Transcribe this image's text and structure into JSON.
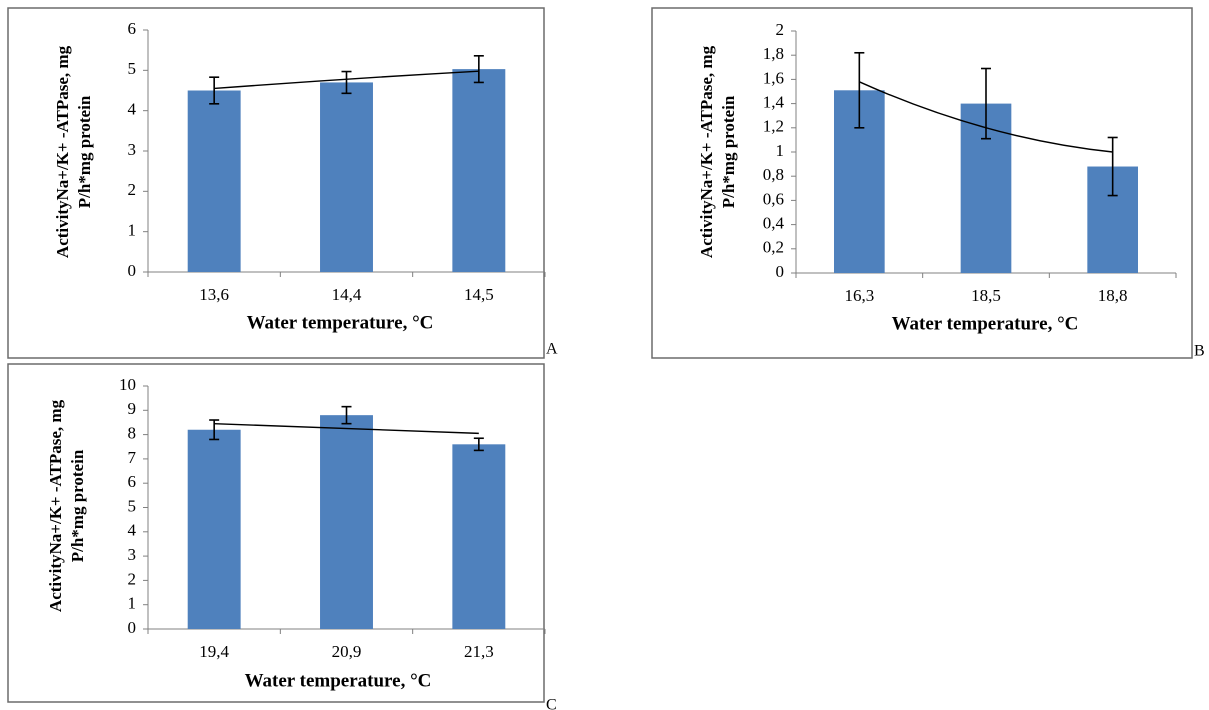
{
  "chart_data": [
    {
      "panel": "A",
      "type": "bar",
      "categories": [
        "13,6",
        "14,4",
        "14,5"
      ],
      "values": [
        4.5,
        4.7,
        5.03
      ],
      "errors": [
        0.33,
        0.27,
        0.33
      ],
      "trend": [
        4.55,
        4.78,
        4.98
      ],
      "xlabel": "Water temperature, °C",
      "ylabel": [
        "ActivityNa+/K+ -ATPase, mg",
        "P/h*mg protein"
      ],
      "ylim": [
        0,
        6
      ],
      "ytick_step": 1,
      "decimal_separator": ",",
      "grid": false,
      "colors": {
        "bar": "#4f81bd",
        "trend": "#000000"
      }
    },
    {
      "panel": "B",
      "type": "bar",
      "categories": [
        "16,3",
        "18,5",
        "18,8"
      ],
      "values": [
        1.51,
        1.4,
        0.88
      ],
      "errors": [
        0.31,
        0.29,
        0.24
      ],
      "trend": [
        1.58,
        1.2,
        1.0
      ],
      "xlabel": "Water temperature, °C",
      "ylabel": [
        "ActivityNa+/K+ -ATPase, mg",
        "P/h*mg protein"
      ],
      "ylim": [
        0,
        2
      ],
      "ytick_step": 0.2,
      "decimal_separator": ",",
      "grid": false,
      "colors": {
        "bar": "#4f81bd",
        "trend": "#000000"
      }
    },
    {
      "panel": "C",
      "type": "bar",
      "categories": [
        "19,4",
        "20,9",
        "21,3"
      ],
      "values": [
        8.2,
        8.8,
        7.6
      ],
      "errors": [
        0.4,
        0.35,
        0.25
      ],
      "trend": [
        8.45,
        8.25,
        8.05
      ],
      "xlabel": "Water temperature, °C",
      "ylabel": [
        "ActivityNa+/K+ -ATPase, mg",
        "P/h*mg protein"
      ],
      "ylim": [
        0,
        10
      ],
      "ytick_step": 1,
      "decimal_separator": ",",
      "grid": false,
      "colors": {
        "bar": "#4f81bd",
        "trend": "#000000"
      }
    }
  ]
}
